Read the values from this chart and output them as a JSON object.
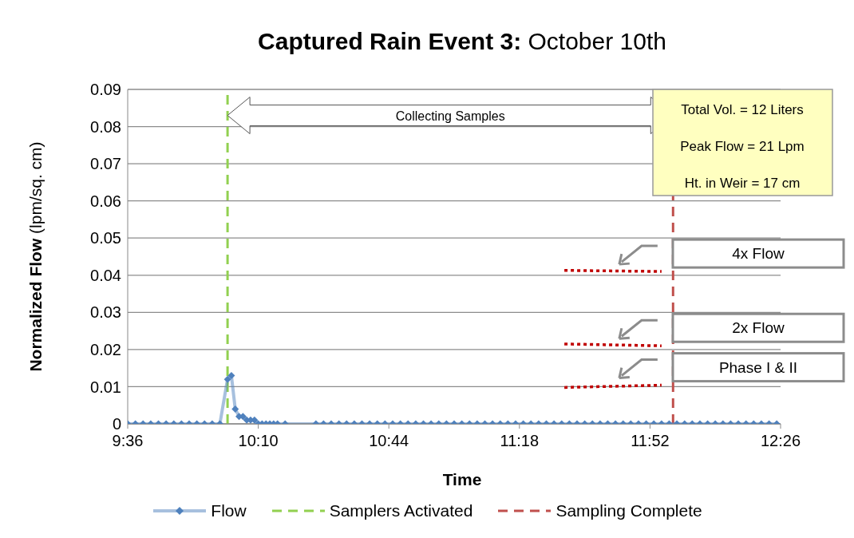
{
  "chart_data": {
    "type": "line",
    "title": "Captured Rain Event 3: October 10th",
    "xlabel": "Time",
    "ylabel": "Normalized Flow  (lpm/sq. cm)",
    "xlim": [
      9.6,
      12.4333
    ],
    "xticks": [
      {
        "value": 9.6,
        "label": "9:36"
      },
      {
        "value": 10.1667,
        "label": "10:10"
      },
      {
        "value": 10.7333,
        "label": "10:44"
      },
      {
        "value": 11.3,
        "label": "11:18"
      },
      {
        "value": 11.8667,
        "label": "11:52"
      },
      {
        "value": 12.4333,
        "label": "12:26"
      }
    ],
    "ylim": [
      0,
      0.09
    ],
    "yticks": [
      0,
      0.01,
      0.02,
      0.03,
      0.04,
      0.05,
      0.06,
      0.07,
      0.08,
      0.09
    ],
    "grid": "y",
    "legend": "bottom",
    "series": [
      {
        "name": "Flow",
        "color": "#4f81bd",
        "marker": "diamond",
        "line_style": "solid",
        "x": [
          9.6,
          9.6333,
          9.6667,
          9.7,
          9.7333,
          9.7667,
          9.8,
          9.8333,
          9.8667,
          9.9,
          9.9333,
          9.9667,
          10.0,
          10.0333,
          10.05,
          10.0667,
          10.0833,
          10.1,
          10.1167,
          10.1333,
          10.15,
          10.1667,
          10.1833,
          10.2,
          10.2167,
          10.2333,
          10.25,
          10.2833,
          10.4167,
          10.45,
          10.4833,
          10.5167,
          10.55,
          10.5833,
          10.6167,
          10.65,
          10.6833,
          10.7167,
          10.75,
          10.7833,
          10.8167,
          10.85,
          10.8833,
          10.9167,
          10.95,
          10.9833,
          11.0167,
          11.05,
          11.0833,
          11.1167,
          11.15,
          11.1833,
          11.2167,
          11.25,
          11.2833,
          11.3167,
          11.35,
          11.3833,
          11.4167,
          11.45,
          11.4833,
          11.5167,
          11.55,
          11.5833,
          11.6167,
          11.65,
          11.6833,
          11.7167,
          11.75,
          11.7833,
          11.8167,
          11.85,
          11.8833,
          11.9167,
          11.95,
          11.9833,
          12.0167,
          12.05,
          12.0833,
          12.1167,
          12.15,
          12.1833,
          12.2167,
          12.25,
          12.2833,
          12.3167,
          12.35,
          12.3833,
          12.4167
        ],
        "values": [
          0,
          0,
          0,
          0,
          0,
          0,
          0,
          0,
          0,
          0,
          0,
          0,
          0,
          0.012,
          0.013,
          0.004,
          0.002,
          0.002,
          0.001,
          0.001,
          0.001,
          0,
          0,
          0,
          0,
          0,
          0,
          0,
          0,
          0,
          0,
          0,
          0,
          0,
          0,
          0,
          0,
          0,
          0,
          0,
          0,
          0,
          0,
          0,
          0,
          0,
          0,
          0,
          0,
          0,
          0,
          0,
          0,
          0,
          0,
          0,
          0,
          0,
          0,
          0,
          0,
          0,
          0,
          0,
          0,
          0,
          0,
          0,
          0,
          0,
          0,
          0,
          0,
          0,
          0,
          0,
          0,
          0,
          0,
          0,
          0,
          0,
          0,
          0,
          0,
          0,
          0,
          0,
          0
        ]
      },
      {
        "color": "#c00000",
        "marker": "none",
        "line_style": "dotted",
        "x": [
          11.495,
          11.9167
        ],
        "values": [
          0.0413,
          0.041
        ]
      },
      {
        "color": "#c00000",
        "marker": "none",
        "line_style": "dotted",
        "x": [
          11.495,
          11.9167
        ],
        "values": [
          0.0215,
          0.021
        ]
      },
      {
        "color": "#c00000",
        "marker": "none",
        "line_style": "dotted",
        "x": [
          11.495,
          11.9167
        ],
        "values": [
          0.0098,
          0.0104
        ]
      }
    ],
    "ref_lines": [
      {
        "axis": "x",
        "value": 10.0333,
        "label": "Samplers Activated",
        "color": "#92d050",
        "line_style": "dashed"
      },
      {
        "axis": "x",
        "value": 11.9667,
        "label": "Sampling Complete",
        "color": "#c0504d",
        "line_style": "dashed"
      }
    ],
    "annotations": [
      "Collecting Samples",
      "Total Vol. = 12 Liters",
      "Peak Flow = 21 Lpm",
      "Ht. in Weir = 17 cm",
      "4x Flow",
      "2x Flow",
      "Phase I & II"
    ]
  }
}
